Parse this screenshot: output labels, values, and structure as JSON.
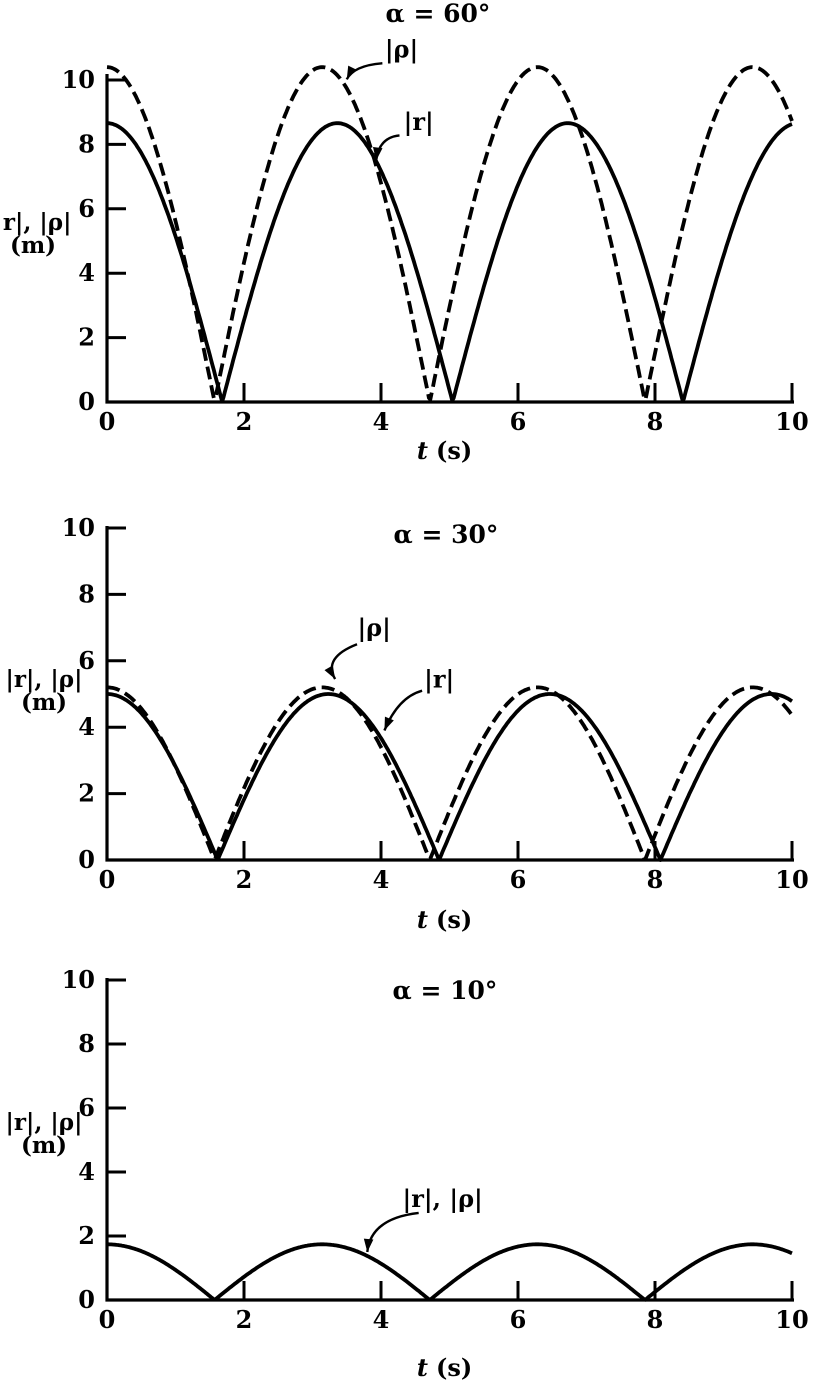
{
  "figure": {
    "background": "#ffffff",
    "ink": "#000000",
    "description_texts": {
      "title_60": "α = 60°",
      "title_30": "α = 30°",
      "title_10": "α = 10°"
    }
  },
  "chart_data": [
    {
      "type": "line",
      "alpha_deg": 60,
      "title": "α = 60°",
      "xlabel_var": "t",
      "xlabel_unit": "(s)",
      "ylabel": "|r|, |ρ|",
      "ylabel_unit": "(m)",
      "xlim": [
        0,
        10
      ],
      "ylim": [
        0,
        10
      ],
      "x_ticks": [
        0,
        2,
        4,
        6,
        8,
        10
      ],
      "y_ticks": [
        0,
        2,
        4,
        6,
        8,
        10
      ],
      "grid": false,
      "series": [
        {
          "name": "|ρ|",
          "line": "dashed",
          "model": "A*abs(cos(omega*t))",
          "amplitude": 10.4,
          "omega": 1.0,
          "peak_value": 10.4,
          "peaks_t": [
            0,
            3.14,
            6.28,
            9.42
          ],
          "zeros_t": [
            1.57,
            4.71,
            7.85
          ],
          "t": [
            0,
            1,
            2,
            3,
            4,
            5,
            6,
            7,
            8,
            9,
            10
          ],
          "values": [
            10.4,
            5.62,
            4.33,
            10.3,
            6.8,
            2.95,
            9.99,
            7.84,
            1.51,
            9.48,
            8.72
          ]
        },
        {
          "name": "|r|",
          "line": "solid",
          "model": "A*abs(cos(omega*t))",
          "amplitude": 8.66,
          "omega": 0.934,
          "peak_value": 8.66,
          "peaks_t": [
            0,
            3.36,
            6.73,
            10.09
          ],
          "zeros_t": [
            1.68,
            5.05,
            8.41
          ],
          "t": [
            0,
            1,
            2,
            3,
            4,
            5,
            6,
            7,
            8,
            9,
            10
          ],
          "values": [
            8.66,
            5.15,
            2.54,
            8.17,
            7.18,
            0.37,
            6.74,
            8.38,
            3.23,
            4.53,
            8.63
          ]
        }
      ],
      "annotations": [
        {
          "text": "|ρ|",
          "text_at": [
            4.3,
            10.7
          ],
          "arrow_from": [
            4.02,
            10.52
          ],
          "arrow_ctrl": [
            3.6,
            10.45
          ],
          "arrow_tip": [
            3.5,
            10.02
          ]
        },
        {
          "text": "|r|",
          "text_at": [
            4.55,
            8.45
          ],
          "arrow_from": [
            4.27,
            8.28
          ],
          "arrow_ctrl": [
            3.97,
            8.22
          ],
          "arrow_tip": [
            3.93,
            7.5
          ]
        }
      ]
    },
    {
      "type": "line",
      "alpha_deg": 30,
      "title": "α = 30°",
      "xlabel_var": "t",
      "xlabel_unit": "(s)",
      "ylabel": "|r|, |ρ|",
      "ylabel_unit": "(m)",
      "xlim": [
        0,
        10
      ],
      "ylim": [
        0,
        10
      ],
      "x_ticks": [
        0,
        2,
        4,
        6,
        8,
        10
      ],
      "y_ticks": [
        0,
        2,
        4,
        6,
        8,
        10
      ],
      "grid": false,
      "series": [
        {
          "name": "|ρ|",
          "line": "dashed",
          "model": "A*abs(cos(omega*t))",
          "amplitude": 5.2,
          "omega": 1.0,
          "peak_value": 5.2,
          "peaks_t": [
            0,
            3.14,
            6.28,
            9.42
          ],
          "zeros_t": [
            1.57,
            4.71,
            7.85
          ],
          "t": [
            0,
            1,
            2,
            3,
            4,
            5,
            6,
            7,
            8,
            9,
            10
          ],
          "values": [
            5.2,
            2.81,
            2.16,
            5.15,
            3.4,
            1.48,
            4.99,
            3.92,
            0.76,
            4.74,
            4.36
          ]
        },
        {
          "name": "|r|",
          "line": "solid",
          "model": "A*abs(cos(omega*t))",
          "amplitude": 5.0,
          "omega": 0.972,
          "peak_value": 5.0,
          "peaks_t": [
            0,
            3.23,
            6.46,
            9.7
          ],
          "zeros_t": [
            1.62,
            4.85,
            8.08
          ],
          "t": [
            0,
            1,
            2,
            3,
            4,
            5,
            6,
            7,
            8,
            9,
            10
          ],
          "values": [
            5.0,
            2.82,
            1.82,
            4.87,
            3.67,
            0.73,
            4.5,
            4.34,
            0.39,
            3.9,
            4.78
          ]
        }
      ],
      "annotations": [
        {
          "text": "|ρ|",
          "text_at": [
            3.9,
            6.75
          ],
          "arrow_from": [
            3.65,
            6.5
          ],
          "arrow_ctrl": [
            3.15,
            6.1
          ],
          "arrow_tip": [
            3.33,
            5.45
          ]
        },
        {
          "text": "|r|",
          "text_at": [
            4.85,
            5.2
          ],
          "arrow_from": [
            4.6,
            5.1
          ],
          "arrow_ctrl": [
            4.25,
            4.9
          ],
          "arrow_tip": [
            4.05,
            3.9
          ]
        }
      ]
    },
    {
      "type": "line",
      "alpha_deg": 10,
      "title": "α = 10°",
      "xlabel_var": "t",
      "xlabel_unit": "(s)",
      "ylabel": "|r|, |ρ|",
      "ylabel_unit": "(m)",
      "xlim": [
        0,
        10
      ],
      "ylim": [
        0,
        10
      ],
      "x_ticks": [
        0,
        2,
        4,
        6,
        8,
        10
      ],
      "y_ticks": [
        0,
        2,
        4,
        6,
        8,
        10
      ],
      "grid": false,
      "series": [
        {
          "name": "|r|, |ρ|",
          "line": "solid",
          "model": "A*abs(cos(omega*t))",
          "amplitude": 1.74,
          "omega": 1.0,
          "peak_value": 1.74,
          "peaks_t": [
            0,
            3.14,
            6.28,
            9.42
          ],
          "zeros_t": [
            1.57,
            4.71,
            7.85
          ],
          "t": [
            0,
            1,
            2,
            3,
            4,
            5,
            6,
            7,
            8,
            9,
            10
          ],
          "values": [
            1.74,
            0.94,
            0.72,
            1.72,
            1.14,
            0.49,
            1.67,
            1.31,
            0.25,
            1.59,
            1.46
          ]
        }
      ],
      "annotations": [
        {
          "text": "|r|, |ρ|",
          "text_at": [
            4.9,
            2.9
          ],
          "arrow_from": [
            4.55,
            2.72
          ],
          "arrow_ctrl": [
            3.85,
            2.55
          ],
          "arrow_tip": [
            3.8,
            1.5
          ]
        }
      ]
    }
  ]
}
